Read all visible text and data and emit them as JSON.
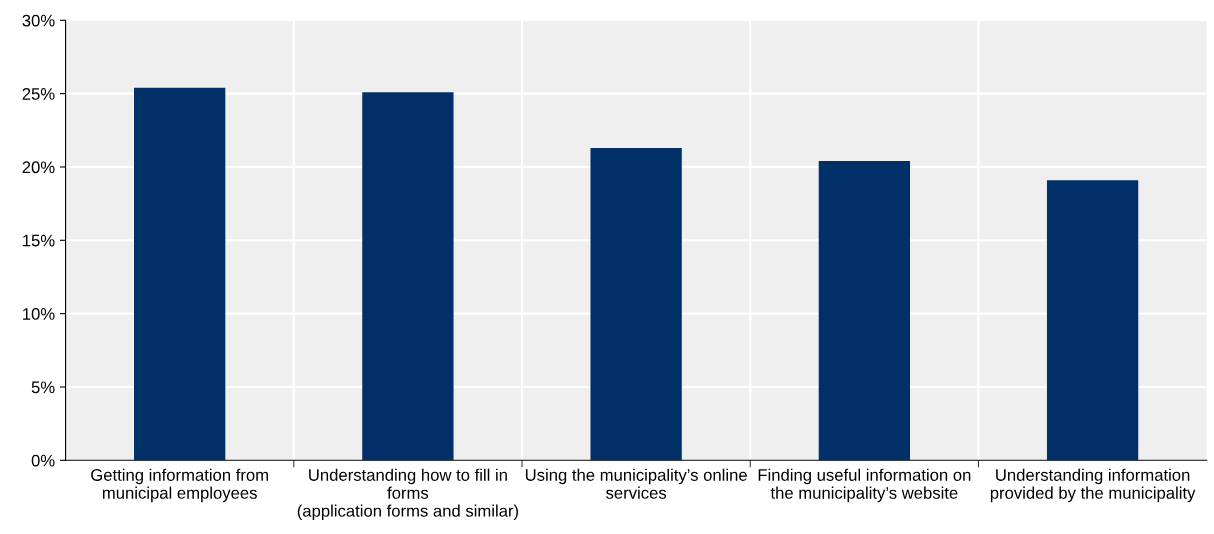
{
  "chart_data": {
    "type": "bar",
    "categories": [
      "Getting information from\nmunicipal employees",
      "Understanding how to fill in\nforms\n(application forms and similar)",
      "Using the municipality’s online\nservices",
      "Finding useful information on\nthe municipality’s website",
      "Understanding information\nprovided by the municipality"
    ],
    "values": [
      25.4,
      25.1,
      21.3,
      20.4,
      19.1
    ],
    "color": "#003067",
    "ylim": [
      0,
      30
    ],
    "yticks": [
      {
        "value": 0,
        "label": "0%"
      },
      {
        "value": 5,
        "label": "5%"
      },
      {
        "value": 10,
        "label": "10%"
      },
      {
        "value": 15,
        "label": "15%"
      },
      {
        "value": 20,
        "label": "20%"
      },
      {
        "value": 25,
        "label": "25%"
      },
      {
        "value": 30,
        "label": "30%"
      }
    ],
    "grid": true
  }
}
